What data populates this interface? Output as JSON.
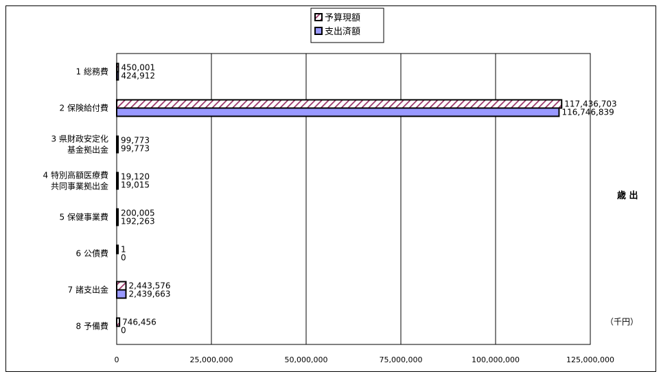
{
  "chart_data": {
    "type": "bar",
    "orientation": "horizontal",
    "categories": [
      [
        "1 総務費"
      ],
      [
        "2 保険給付費"
      ],
      [
        "3 県財政安定化",
        "基金拠出金"
      ],
      [
        "4 特別高額医療費",
        "共同事業拠出金"
      ],
      [
        "5 保健事業費"
      ],
      [
        "6 公債費"
      ],
      [
        "7 諸支出金"
      ],
      [
        "8 予備費"
      ]
    ],
    "series": [
      {
        "name": "予算現額",
        "values": [
          450001,
          117436703,
          99773,
          19120,
          200005,
          1,
          2443576,
          746456
        ],
        "labels": [
          "450,001",
          "117,436,703",
          "99,773",
          "19,120",
          "200,005",
          "1",
          "2,443,576",
          "746,456"
        ],
        "fill": "hatch",
        "color": "#993366"
      },
      {
        "name": "支出済額",
        "values": [
          424912,
          116746839,
          99773,
          19015,
          192263,
          0,
          2439663,
          0
        ],
        "labels": [
          "424,912",
          "116,746,839",
          "99,773",
          "19,015",
          "192,263",
          "0",
          "2,439,663",
          "0"
        ],
        "fill": "solid",
        "color": "#9999ff"
      }
    ],
    "xlim": [
      0,
      125000000
    ],
    "x_ticks": [
      0,
      25000000,
      50000000,
      75000000,
      100000000,
      125000000
    ],
    "x_tick_labels": [
      "0",
      "25,000,000",
      "50,000,000",
      "75,000,000",
      "100,000,000",
      "125,000,000"
    ],
    "grid": "vertical",
    "legend_position": "top-center",
    "side_title": "歳 出",
    "unit_label": "（千円）"
  }
}
